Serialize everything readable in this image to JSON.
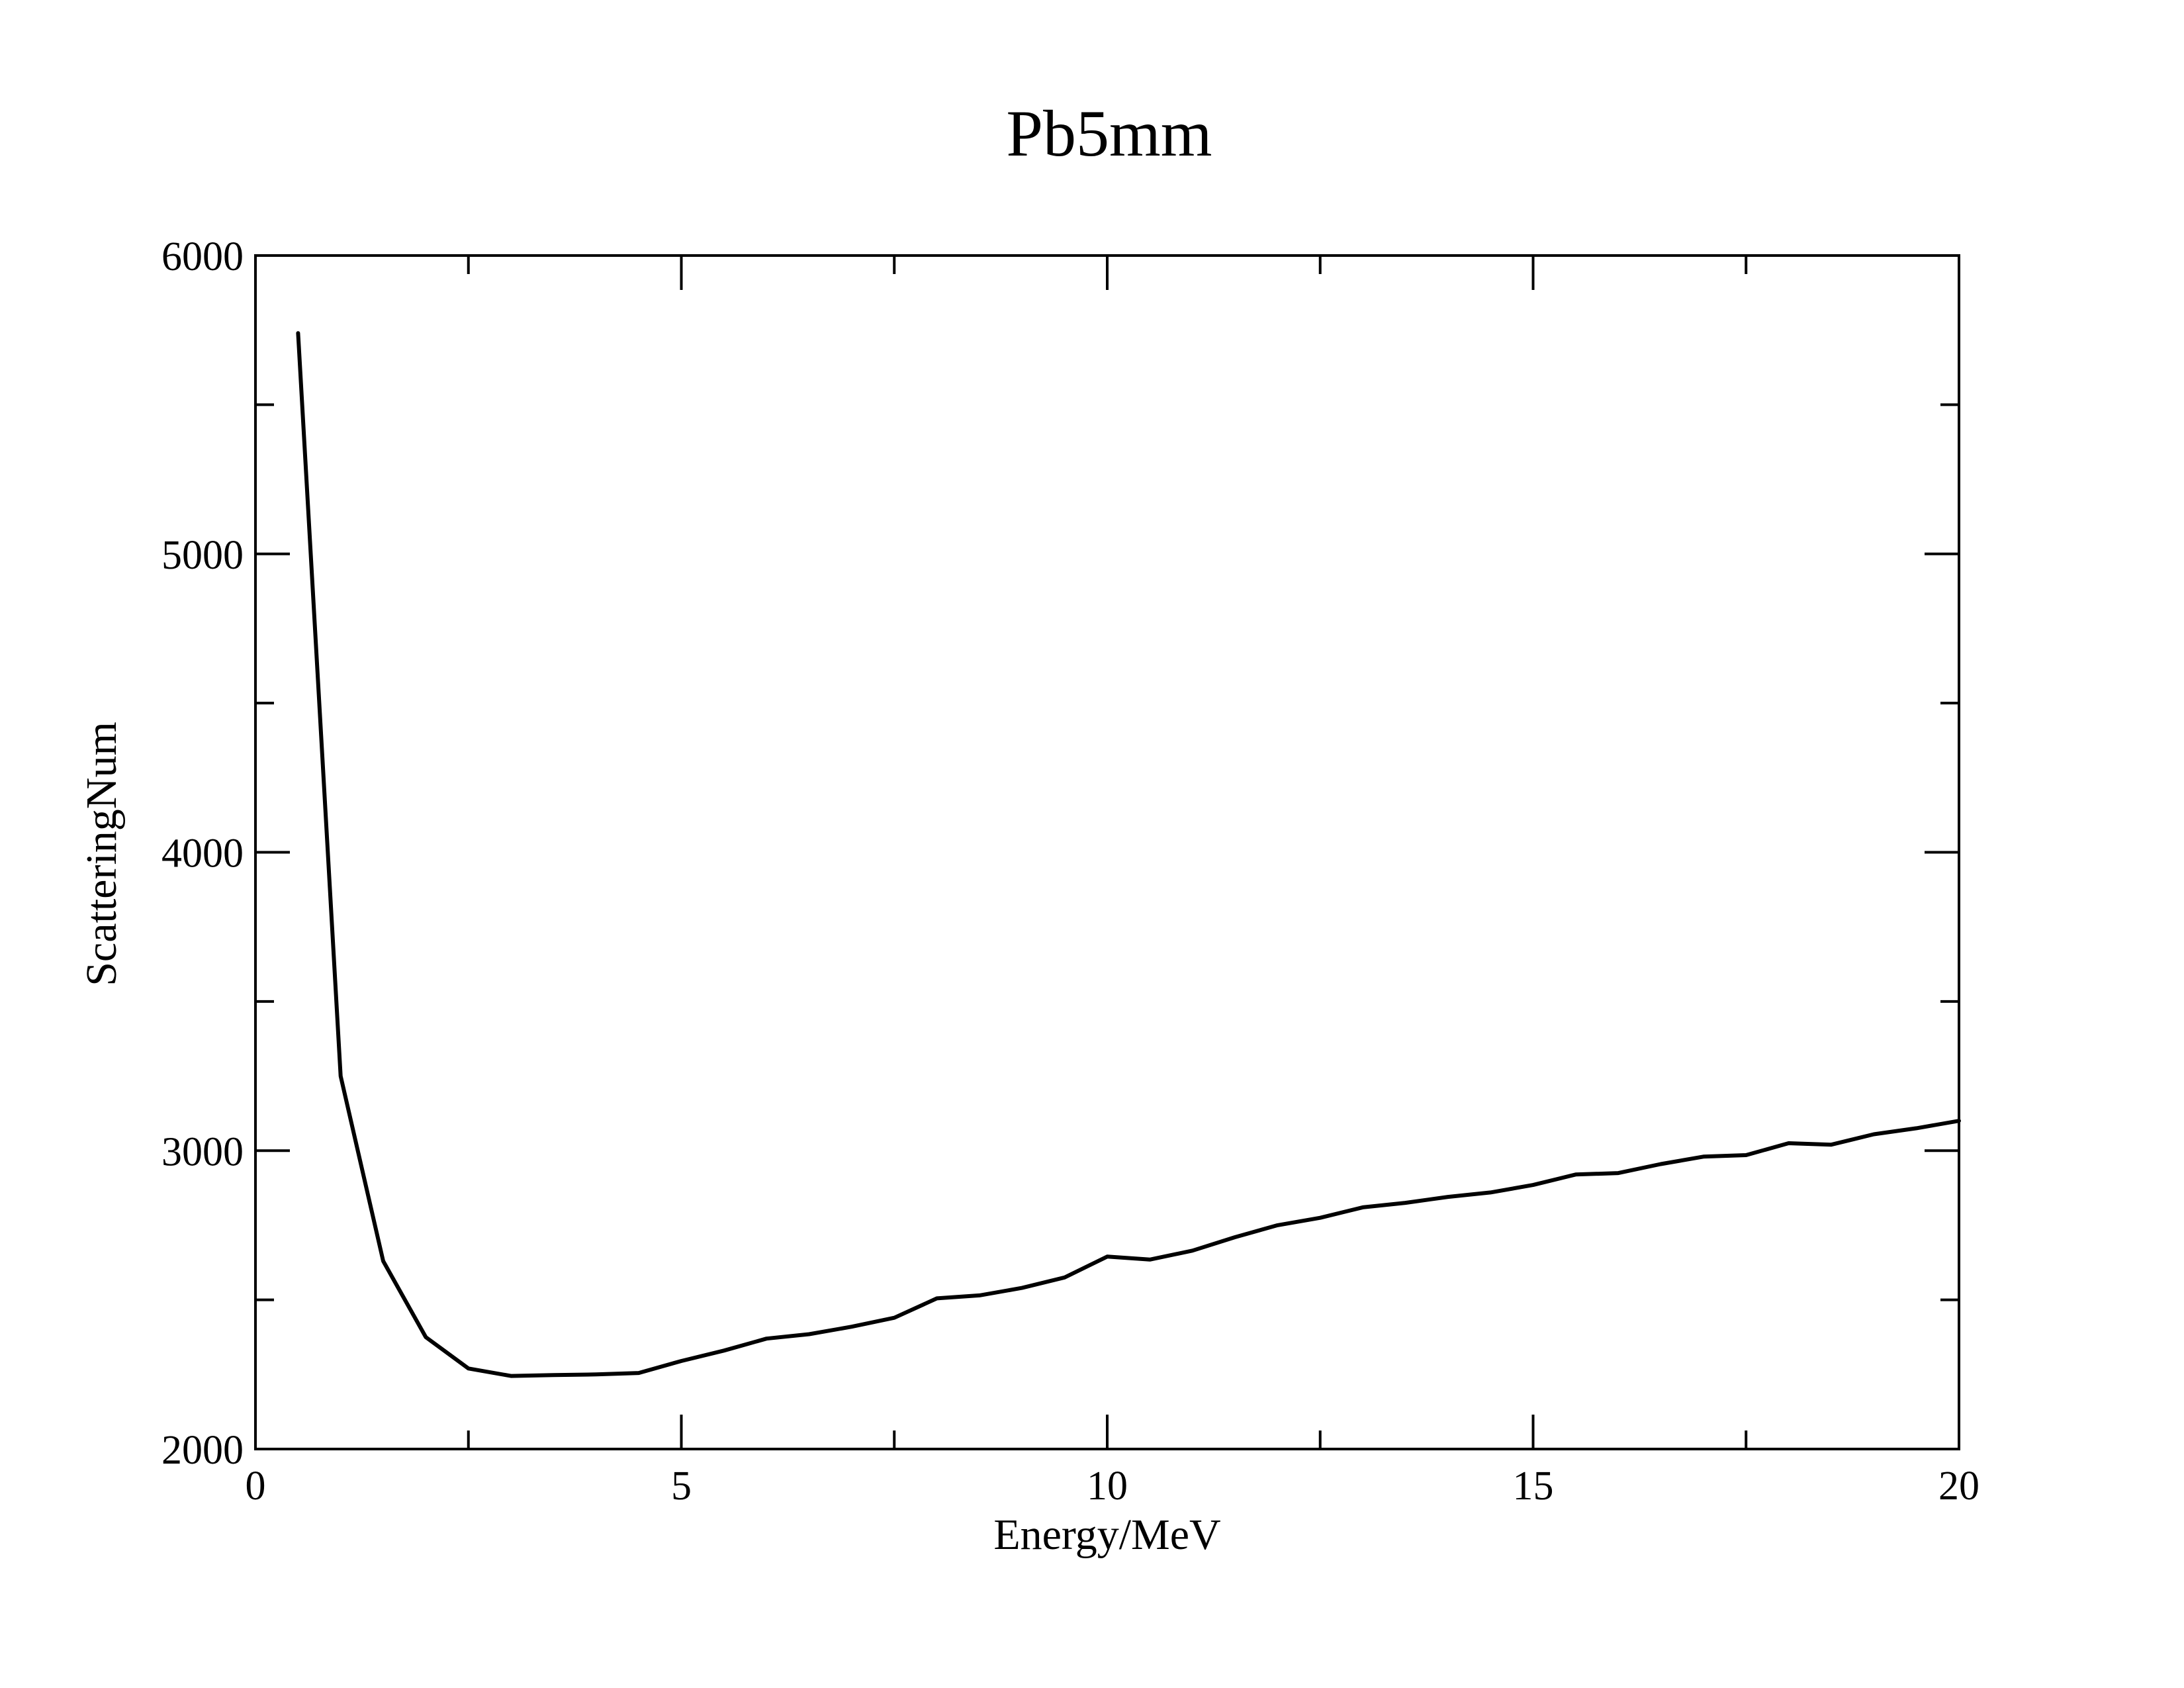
{
  "chart_data": {
    "type": "line",
    "title": "Pb5mm",
    "xlabel": "Energy/MeV",
    "ylabel": "ScatteringNum",
    "xlim": [
      0,
      20
    ],
    "ylim": [
      2000,
      6000
    ],
    "x_major_ticks": [
      0,
      5,
      10,
      15,
      20
    ],
    "x_tick_labels": [
      "0",
      "5",
      "10",
      "15",
      "20"
    ],
    "x_minor_ticks": [
      2.5,
      7.5,
      12.5,
      17.5
    ],
    "y_major_ticks": [
      2000,
      3000,
      4000,
      5000,
      6000
    ],
    "y_tick_labels": [
      "2000",
      "3000",
      "4000",
      "5000",
      "6000"
    ],
    "y_minor_ticks": [
      2500,
      3500,
      4500,
      5500
    ],
    "grid": false,
    "legend": "none",
    "line_color": "#000000",
    "series": [
      {
        "x": [
          0.5,
          1.0,
          1.5,
          2.0,
          2.5,
          3.0,
          3.5,
          4.0,
          4.5,
          5.0,
          5.5,
          6.0,
          6.5,
          7.0,
          7.5,
          8.0,
          8.5,
          9.0,
          9.5,
          10.0,
          10.5,
          11.0,
          11.5,
          12.0,
          12.5,
          13.0,
          13.5,
          14.0,
          14.5,
          15.0,
          15.5,
          16.0,
          16.5,
          17.0,
          17.5,
          18.0,
          18.5,
          19.0,
          19.5,
          20.0
        ],
        "y": [
          5740,
          3250,
          2630,
          2375,
          2270,
          2245,
          2248,
          2250,
          2255,
          2295,
          2330,
          2370,
          2385,
          2410,
          2440,
          2505,
          2515,
          2540,
          2575,
          2645,
          2635,
          2665,
          2710,
          2750,
          2775,
          2810,
          2825,
          2845,
          2860,
          2885,
          2920,
          2925,
          2955,
          2980,
          2985,
          3025,
          3020,
          3055,
          3075,
          3100
        ]
      }
    ]
  }
}
